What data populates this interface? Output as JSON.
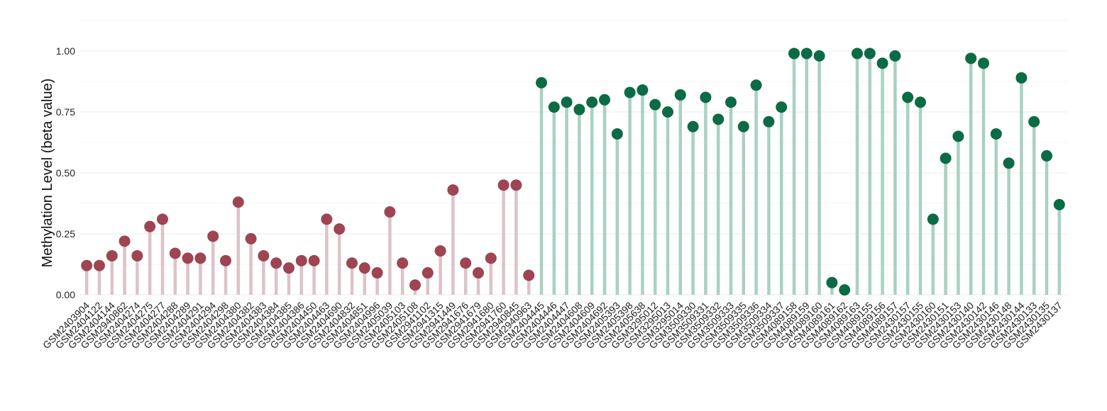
{
  "chart_data": {
    "type": "lollipop",
    "ylabel": "Methylation Level (beta value)",
    "ylim": [
      -0.04,
      1.1
    ],
    "yticks": [
      0.0,
      0.25,
      0.5,
      0.75,
      1.0
    ],
    "ytick_labels": [
      "0.00",
      "0.25",
      "0.50",
      "0.75",
      "1.00"
    ],
    "grid": true,
    "legend": "none",
    "colors": {
      "group_a_point": "#9e4452",
      "group_a_stem": "#dcc3c8",
      "group_b_point": "#0b6b45",
      "group_b_stem": "#a9d1c1"
    },
    "categories": [
      "GSM2403904",
      "GSM2404122",
      "GSM2404144",
      "GSM2940862",
      "GSM2404274",
      "GSM2404275",
      "GSM2404277",
      "GSM2404288",
      "GSM2404289",
      "GSM2404291",
      "GSM2404294",
      "GSM2404298",
      "GSM2404380",
      "GSM2404382",
      "GSM2404383",
      "GSM2404384",
      "GSM2404385",
      "GSM2404386",
      "GSM2404450",
      "GSM2404463",
      "GSM2404690",
      "GSM2404832",
      "GSM2404851",
      "GSM2404996",
      "GSM2405039",
      "GSM2405103",
      "GSM2405108",
      "GSM2941102",
      "GSM2941315",
      "GSM2941449",
      "GSM2941676",
      "GSM2941679",
      "GSM2941680",
      "GSM2941760",
      "GSM2940845",
      "GSM2940963",
      "GSM2404445",
      "GSM2404446",
      "GSM2404447",
      "GSM2404608",
      "GSM2404609",
      "GSM2404692",
      "GSM2405393",
      "GSM2405398",
      "GSM2405638",
      "GSM3295012",
      "GSM3295013",
      "GSM3295014",
      "GSM3509330",
      "GSM3509331",
      "GSM3509332",
      "GSM3509333",
      "GSM3509335",
      "GSM3509336",
      "GSM3509334",
      "GSM3509337",
      "GSM4089158",
      "GSM4089159",
      "GSM4089160",
      "GSM4089161",
      "GSM4089162",
      "GSM4089163",
      "GSM4089155",
      "GSM4089156",
      "GSM4089157",
      "GSM2430157",
      "GSM2430155",
      "GSM2430160",
      "GSM2430151",
      "GSM2430153",
      "GSM2430140",
      "GSM2430142",
      "GSM2430146",
      "GSM2430148",
      "GSM2430144",
      "GSM2430133",
      "GSM2430135",
      "GSM2430137"
    ],
    "values": [
      0.12,
      0.12,
      0.16,
      0.22,
      0.16,
      0.28,
      0.31,
      0.17,
      0.15,
      0.15,
      0.24,
      0.14,
      0.38,
      0.23,
      0.16,
      0.13,
      0.11,
      0.14,
      0.14,
      0.31,
      0.27,
      0.13,
      0.11,
      0.09,
      0.34,
      0.13,
      0.04,
      0.09,
      0.18,
      0.43,
      0.13,
      0.09,
      0.15,
      0.45,
      0.45,
      0.08,
      0.87,
      0.77,
      0.79,
      0.76,
      0.79,
      0.8,
      0.66,
      0.83,
      0.84,
      0.78,
      0.75,
      0.82,
      0.69,
      0.81,
      0.72,
      0.79,
      0.69,
      0.86,
      0.71,
      0.77,
      0.99,
      0.99,
      0.98,
      0.05,
      0.02,
      0.99,
      0.99,
      0.95,
      0.98,
      0.81,
      0.79,
      0.31,
      0.56,
      0.65,
      0.97,
      0.95,
      0.66,
      0.54,
      0.89,
      0.71,
      0.57,
      0.37
    ],
    "groups": [
      "A",
      "A",
      "A",
      "A",
      "A",
      "A",
      "A",
      "A",
      "A",
      "A",
      "A",
      "A",
      "A",
      "A",
      "A",
      "A",
      "A",
      "A",
      "A",
      "A",
      "A",
      "A",
      "A",
      "A",
      "A",
      "A",
      "A",
      "A",
      "A",
      "A",
      "A",
      "A",
      "A",
      "A",
      "A",
      "A",
      "B",
      "B",
      "B",
      "B",
      "B",
      "B",
      "B",
      "B",
      "B",
      "B",
      "B",
      "B",
      "B",
      "B",
      "B",
      "B",
      "B",
      "B",
      "B",
      "B",
      "B",
      "B",
      "B",
      "B",
      "B",
      "B",
      "B",
      "B",
      "B",
      "B",
      "B",
      "B",
      "B",
      "B",
      "B",
      "B",
      "B",
      "B",
      "B",
      "B",
      "B",
      "B"
    ]
  }
}
